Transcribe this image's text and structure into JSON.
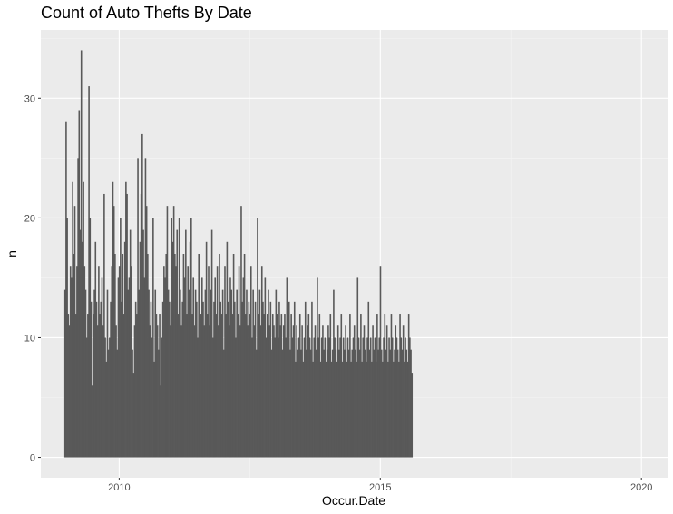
{
  "chart_data": {
    "type": "bar",
    "title": "Count of Auto Thefts By Date",
    "xlabel": "Occur.Date",
    "ylabel": "n",
    "x_ticks": [
      "2010",
      "2015",
      "2020"
    ],
    "y_ticks": [
      "0",
      "10",
      "20",
      "30"
    ],
    "xlim": [
      2008.5,
      2020.5
    ],
    "ylim": [
      -1.7,
      35.7
    ],
    "grid": true,
    "x_start": 2008.95,
    "x_step": 0.0833,
    "values": [
      14,
      28,
      20,
      12,
      11,
      16,
      15,
      23,
      17,
      21,
      12,
      16,
      25,
      29,
      19,
      34,
      18,
      23,
      16,
      14,
      10,
      12,
      31,
      20,
      13,
      6,
      12,
      14,
      18,
      13,
      11,
      16,
      12,
      13,
      15,
      11,
      22,
      10,
      8,
      14,
      9,
      10,
      13,
      16,
      23,
      21,
      17,
      11,
      9,
      15,
      16,
      20,
      13,
      17,
      12,
      18,
      23,
      22,
      14,
      15,
      19,
      16,
      9,
      7,
      11,
      13,
      12,
      25,
      14,
      18,
      22,
      27,
      19,
      15,
      25,
      21,
      17,
      14,
      11,
      13,
      10,
      20,
      8,
      14,
      12,
      11,
      9,
      12,
      6,
      10,
      13,
      16,
      15,
      17,
      21,
      14,
      13,
      11,
      20,
      18,
      21,
      17,
      16,
      19,
      12,
      20,
      14,
      11,
      13,
      17,
      15,
      19,
      12,
      16,
      14,
      18,
      20,
      12,
      15,
      11,
      14,
      13,
      10,
      17,
      9,
      12,
      15,
      13,
      11,
      14,
      18,
      12,
      16,
      11,
      14,
      19,
      10,
      13,
      15,
      12,
      16,
      11,
      17,
      13,
      12,
      14,
      9,
      16,
      12,
      18,
      13,
      11,
      15,
      14,
      12,
      17,
      13,
      10,
      14,
      12,
      16,
      11,
      21,
      13,
      15,
      17,
      12,
      14,
      11,
      13,
      12,
      16,
      10,
      14,
      11,
      13,
      9,
      20,
      12,
      14,
      11,
      16,
      13,
      12,
      15,
      10,
      12,
      14,
      11,
      13,
      9,
      12,
      11,
      10,
      14,
      12,
      10,
      13,
      11,
      12,
      9,
      11,
      12,
      10,
      15,
      11,
      13,
      9,
      12,
      10,
      11,
      13,
      8,
      11,
      9,
      10,
      12,
      9,
      11,
      8,
      10,
      13,
      9,
      11,
      12,
      10,
      9,
      13,
      8,
      10,
      11,
      9,
      15,
      10,
      12,
      8,
      10,
      11,
      9,
      10,
      8,
      9,
      11,
      10,
      12,
      8,
      9,
      14,
      10,
      9,
      8,
      11,
      9,
      10,
      12,
      8,
      10,
      9,
      11,
      8,
      10,
      9,
      12,
      8,
      9,
      10,
      11,
      9,
      8,
      15,
      10,
      9,
      12,
      8,
      10,
      11,
      9,
      8,
      10,
      13,
      9,
      10,
      8,
      11,
      9,
      10,
      8,
      12,
      9,
      10,
      16,
      9,
      8,
      10,
      12,
      9,
      11,
      8,
      10,
      9,
      12,
      10,
      8,
      9,
      11,
      10,
      9,
      8,
      12,
      10,
      9,
      11,
      8,
      10,
      9,
      8,
      12,
      10,
      9,
      7
    ]
  }
}
